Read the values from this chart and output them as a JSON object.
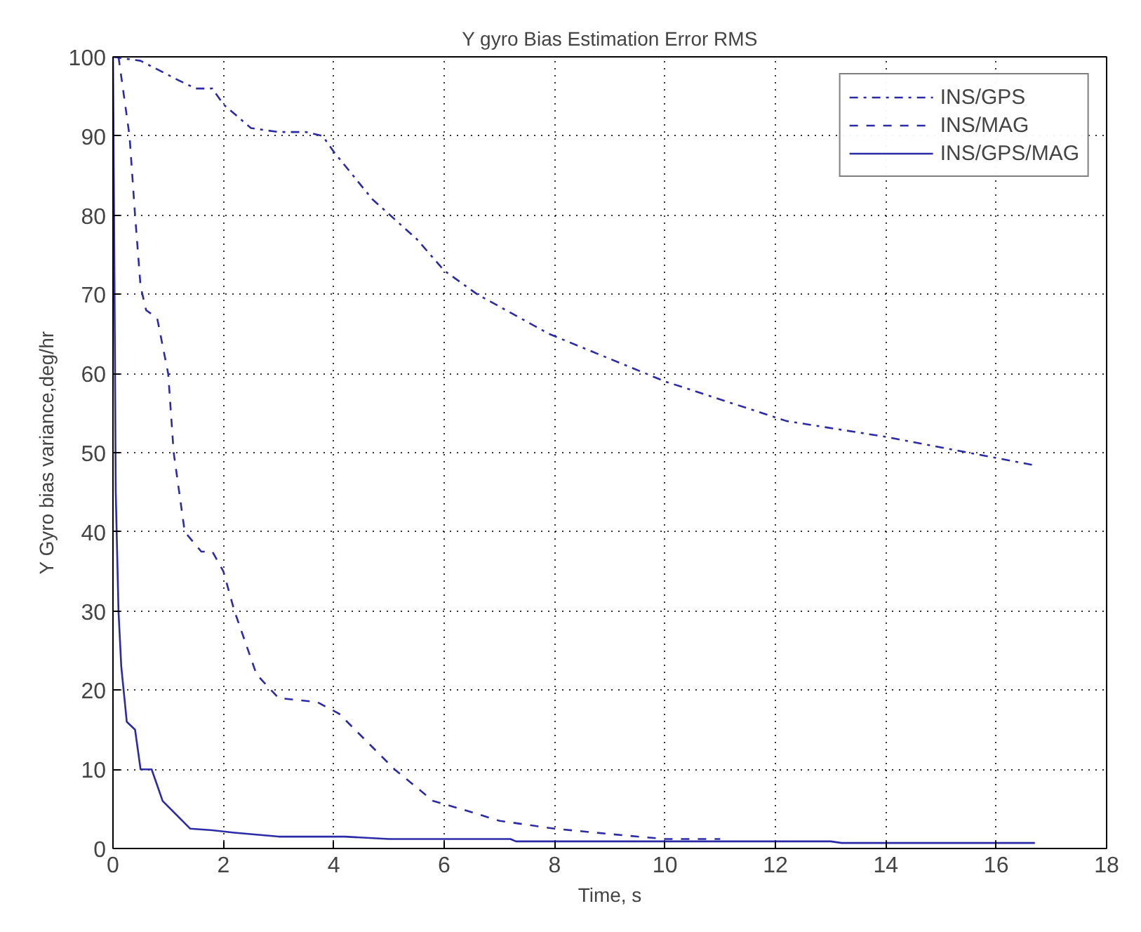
{
  "chart_data": {
    "type": "line",
    "title": "Y gyro Bias Estimation Error RMS",
    "xlabel": "Time, s",
    "ylabel": "Y Gyro bias variance,deg/hr",
    "xlim": [
      0,
      18
    ],
    "ylim": [
      0,
      100
    ],
    "xticks": [
      0,
      2,
      4,
      6,
      8,
      10,
      12,
      14,
      16,
      18
    ],
    "yticks": [
      0,
      10,
      20,
      30,
      40,
      50,
      60,
      70,
      80,
      90,
      100
    ],
    "grid": true,
    "legend": "top right",
    "marker": "none",
    "series": [
      {
        "name": "INS/GPS",
        "color": "#2b2ba8",
        "line_style": "dashdot",
        "x": [
          0,
          0.5,
          1.2,
          1.5,
          1.8,
          2,
          2.5,
          3,
          3.5,
          3.8,
          4,
          4.7,
          5.5,
          6,
          6.6,
          7.9,
          10,
          12.2,
          14,
          16.7
        ],
        "values": [
          100,
          99.5,
          97,
          96,
          96,
          94,
          91,
          90.5,
          90.5,
          90,
          88,
          82,
          77,
          73,
          70,
          65,
          59,
          54,
          52,
          48.4
        ]
      },
      {
        "name": "INS/MAG",
        "color": "#2b2ba8",
        "line_style": "dashed",
        "x": [
          0.1,
          0.3,
          0.4,
          0.5,
          0.6,
          0.8,
          1.0,
          1.1,
          1.3,
          1.6,
          1.8,
          2,
          2.2,
          2.6,
          3,
          3.7,
          4.1,
          5.1,
          5.8,
          6.3,
          7,
          8,
          9.5,
          10,
          11
        ],
        "values": [
          100,
          90,
          80,
          71,
          68,
          67,
          60,
          50,
          40,
          37.5,
          37.5,
          35,
          30,
          22,
          19,
          18.5,
          17,
          10,
          6,
          5,
          3.5,
          2.5,
          1.5,
          1.2,
          1.2
        ]
      },
      {
        "name": "INS/GPS/MAG",
        "color": "#2b2ba8",
        "line_style": "solid",
        "x": [
          0,
          0.02,
          0.05,
          0.1,
          0.15,
          0.25,
          0.4,
          0.5,
          0.7,
          0.8,
          0.9,
          1.4,
          1.8,
          2.2,
          3,
          4.2,
          5,
          7.2,
          7.3,
          13,
          13.2,
          16.7
        ],
        "values": [
          100,
          80,
          45,
          30,
          23,
          16,
          15,
          10,
          10,
          8,
          6,
          2.5,
          2.3,
          2,
          1.5,
          1.5,
          1.2,
          1.2,
          0.9,
          0.9,
          0.7,
          0.7
        ]
      }
    ]
  }
}
